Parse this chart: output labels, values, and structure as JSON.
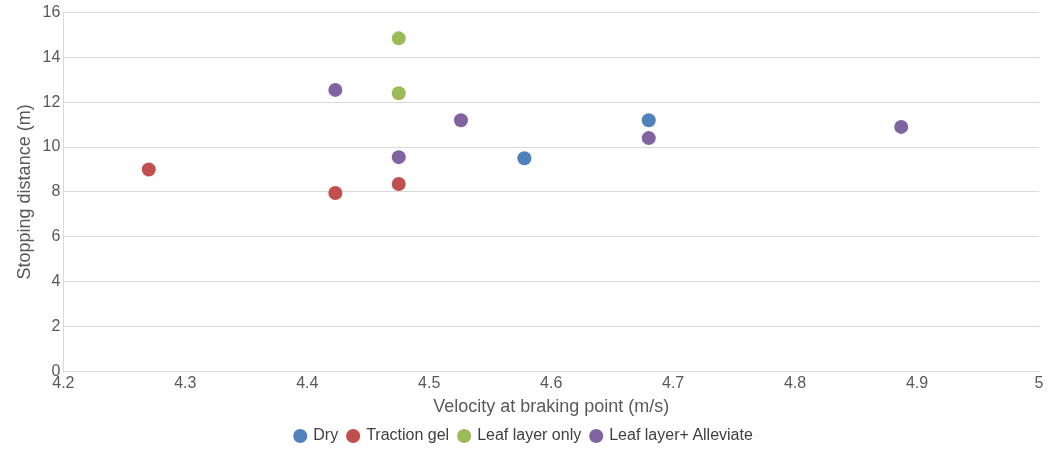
{
  "chart_data": {
    "type": "scatter",
    "xlabel": "Velocity at braking point (m/s)",
    "ylabel": "Stopping distance (m)",
    "xlim": [
      4.2,
      5
    ],
    "xticks": [
      4.2,
      4.3,
      4.4,
      4.5,
      4.6,
      4.7,
      4.8,
      4.9,
      5
    ],
    "ylim": [
      0,
      16
    ],
    "yticks": [
      0,
      2,
      4,
      6,
      8,
      10,
      12,
      14,
      16
    ],
    "grid": "y",
    "legend": "bottom",
    "marker": "circle",
    "series": [
      {
        "name": "Dry",
        "color": "#4f81bd",
        "x": [
          4.578,
          4.68
        ],
        "values": [
          9.5,
          11.2
        ]
      },
      {
        "name": "Traction gel",
        "color": "#c0504d",
        "x": [
          4.27,
          4.423,
          4.475
        ],
        "values": [
          9.0,
          7.95,
          8.35
        ]
      },
      {
        "name": "Leaf layer only",
        "color": "#9bbb59",
        "x": [
          4.475,
          4.475
        ],
        "values": [
          14.85,
          12.4
        ]
      },
      {
        "name": "Leaf layer+ Alleviate",
        "color": "#8064a2",
        "x": [
          4.423,
          4.475,
          4.526,
          4.68,
          4.887
        ],
        "values": [
          12.55,
          9.55,
          11.2,
          10.4,
          10.9
        ]
      }
    ]
  }
}
